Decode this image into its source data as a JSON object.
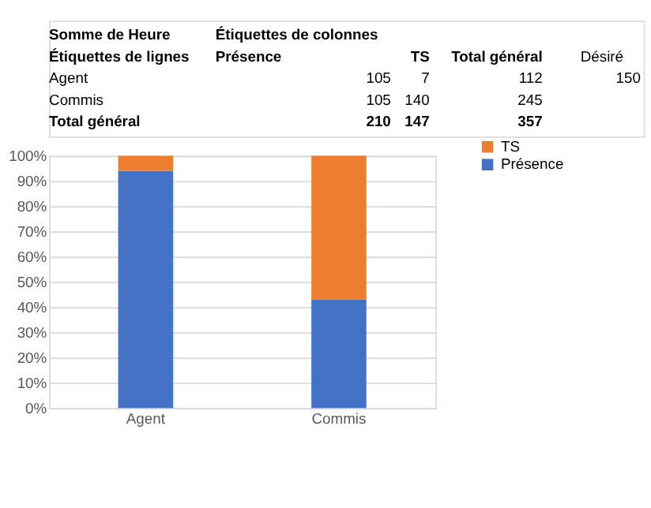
{
  "chart_data": {
    "type": "bar",
    "stacked": true,
    "categories": [
      "Agent",
      "Commis"
    ],
    "series": [
      {
        "name": "Présence",
        "color": "#4472c4",
        "values": [
          94,
          43
        ]
      },
      {
        "name": "TS",
        "color": "#ed7d31",
        "values": [
          6,
          57
        ]
      }
    ],
    "ylim": [
      0,
      100
    ],
    "yticks": [
      {
        "value": 0,
        "label": "0%"
      },
      {
        "value": 10,
        "label": "10%"
      },
      {
        "value": 20,
        "label": "20%"
      },
      {
        "value": 30,
        "label": "30%"
      },
      {
        "value": 40,
        "label": "40%"
      },
      {
        "value": 50,
        "label": "50%"
      },
      {
        "value": 60,
        "label": "60%"
      },
      {
        "value": 70,
        "label": "70%"
      },
      {
        "value": 80,
        "label": "80%"
      },
      {
        "value": 90,
        "label": "90%"
      },
      {
        "value": 100,
        "label": "100%"
      }
    ],
    "grid": "y",
    "legend": "right",
    "annotations": [
      "Somme de Heure",
      "Étiquettes de colonnes",
      "Étiquettes de lignes",
      "Présence",
      "TS",
      "Total général",
      "Désiré",
      "Agent",
      "105",
      "7",
      "112",
      "150",
      "Commis",
      "105",
      "140",
      "245",
      "Total général",
      "210",
      "147",
      "357"
    ]
  }
}
